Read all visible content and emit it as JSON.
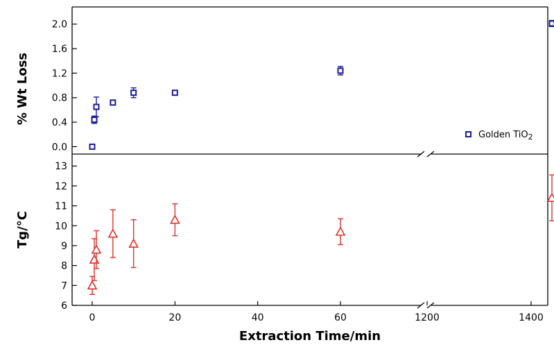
{
  "chart_data": [
    {
      "type": "scatter",
      "ylabel": "% Wt Loss",
      "ylim": [
        -0.12,
        2.28
      ],
      "yticks": [
        "0.0",
        "0.4",
        "0.8",
        "1.2",
        "1.6",
        "2.0"
      ],
      "ytick_values": [
        0.0,
        0.4,
        0.8,
        1.2,
        1.6,
        2.0
      ],
      "axis_break": "between 60 and 1200 min",
      "legend_position": "bottom-right",
      "series": [
        {
          "name": "Golden TiO2",
          "marker": "square",
          "color": "#1a1a9c",
          "x": [
            0,
            0.5,
            1,
            5,
            10,
            20,
            60,
            1440
          ],
          "y": [
            0.0,
            0.44,
            0.65,
            0.72,
            0.88,
            0.88,
            1.24,
            2.01
          ],
          "err": [
            0.0,
            0.06,
            0.16,
            0.03,
            0.08,
            0.03,
            0.07,
            0.05
          ]
        }
      ]
    },
    {
      "type": "scatter",
      "ylabel": "Tg/°C",
      "xlabel": "Extraction Time/min",
      "ylim": [
        6,
        13.6
      ],
      "yticks": [
        "6",
        "7",
        "8",
        "9",
        "10",
        "11",
        "12",
        "13"
      ],
      "ytick_values": [
        6,
        7,
        8,
        9,
        10,
        11,
        12,
        13
      ],
      "xticks": [
        "0",
        "20",
        "40",
        "60",
        "1200",
        "1400"
      ],
      "xtick_values": [
        0,
        20,
        40,
        60,
        1200,
        1400
      ],
      "axis_break": "between 60 and 1200 min",
      "series": [
        {
          "marker": "triangle",
          "color": "#e0302a",
          "x": [
            0,
            0.5,
            1,
            5,
            10,
            20,
            60,
            1440
          ],
          "y": [
            7.0,
            8.3,
            8.8,
            9.6,
            9.1,
            10.3,
            9.7,
            11.4
          ],
          "err": [
            0.45,
            1.05,
            0.95,
            1.2,
            1.2,
            0.8,
            0.65,
            1.15
          ]
        }
      ]
    }
  ],
  "legend": {
    "label_prefix": "Golden TiO",
    "label_sub": "2"
  }
}
